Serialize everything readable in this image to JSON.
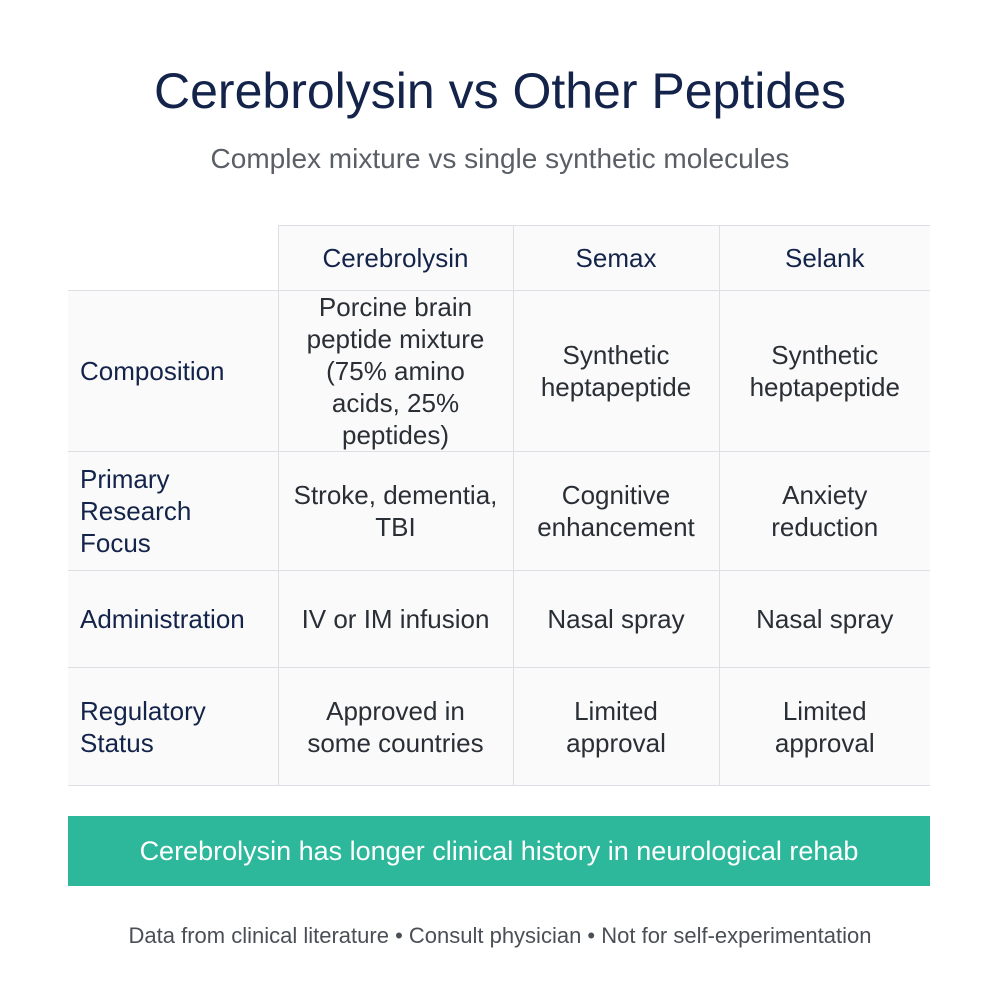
{
  "header": {
    "title": "Cerebrolysin vs Other Peptides",
    "subtitle": "Complex mixture vs single synthetic molecules"
  },
  "table": {
    "columns": [
      "Cerebrolysin",
      "Semax",
      "Selank"
    ],
    "rows": [
      {
        "label": "Composition",
        "cells": [
          "Porcine brain peptide mixture (75% amino acids, 25% peptides)",
          "Synthetic heptapeptide",
          "Synthetic heptapeptide"
        ]
      },
      {
        "label": "Primary Research Focus",
        "cells": [
          "Stroke, dementia, TBI",
          "Cognitive enhancement",
          "Anxiety reduction"
        ]
      },
      {
        "label": "Administration",
        "cells": [
          "IV or IM infusion",
          "Nasal spray",
          "Nasal spray"
        ]
      },
      {
        "label": "Regulatory Status",
        "cells": [
          "Approved in some countries",
          "Limited approval",
          "Limited approval"
        ]
      }
    ]
  },
  "banner": "Cerebrolysin has longer clinical history in neurological rehab",
  "footnote": "Data from clinical literature • Consult physician • Not for self-experimentation"
}
